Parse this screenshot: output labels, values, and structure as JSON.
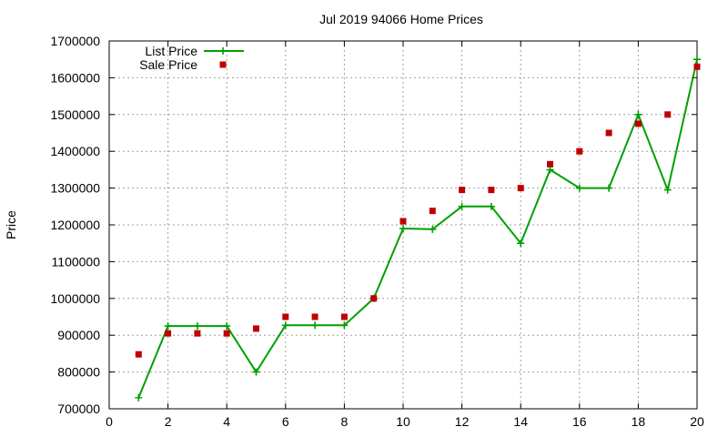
{
  "chart_data": {
    "type": "line",
    "title": "Jul 2019 94066 Home Prices",
    "xlabel": "",
    "ylabel": "Price",
    "xlim": [
      0,
      20
    ],
    "ylim": [
      700000,
      1700000
    ],
    "xticks": [
      0,
      2,
      4,
      6,
      8,
      10,
      12,
      14,
      16,
      18,
      20
    ],
    "yticks": [
      700000,
      800000,
      900000,
      1000000,
      1100000,
      1200000,
      1300000,
      1400000,
      1500000,
      1600000,
      1700000
    ],
    "grid": true,
    "legend_position": "top-left",
    "series": [
      {
        "name": "List Price",
        "style": "line+cross",
        "color": "#00a000",
        "points": [
          [
            1,
            730000
          ],
          [
            2,
            925000
          ],
          [
            3,
            925000
          ],
          [
            4,
            925000
          ],
          [
            5,
            800000
          ],
          [
            6,
            927000
          ],
          [
            7,
            927000
          ],
          [
            8,
            927000
          ],
          [
            9,
            1000000
          ],
          [
            10,
            1190000
          ],
          [
            11,
            1188000
          ],
          [
            12,
            1250000
          ],
          [
            13,
            1250000
          ],
          [
            14,
            1150000
          ],
          [
            15,
            1350000
          ],
          [
            16,
            1300000
          ],
          [
            17,
            1300000
          ],
          [
            18,
            1500000
          ],
          [
            19,
            1295000
          ],
          [
            20,
            1650000
          ]
        ]
      },
      {
        "name": "Sale Price",
        "style": "square",
        "color": "#c00000",
        "points": [
          [
            1,
            848000
          ],
          [
            2,
            905000
          ],
          [
            3,
            905000
          ],
          [
            4,
            905000
          ],
          [
            5,
            918000
          ],
          [
            6,
            950000
          ],
          [
            7,
            950000
          ],
          [
            8,
            950000
          ],
          [
            9,
            1000000
          ],
          [
            10,
            1210000
          ],
          [
            11,
            1238000
          ],
          [
            12,
            1295000
          ],
          [
            13,
            1295000
          ],
          [
            14,
            1300000
          ],
          [
            15,
            1365000
          ],
          [
            16,
            1400000
          ],
          [
            17,
            1450000
          ],
          [
            18,
            1475000
          ],
          [
            19,
            1500000
          ],
          [
            20,
            1630000
          ]
        ]
      }
    ]
  }
}
